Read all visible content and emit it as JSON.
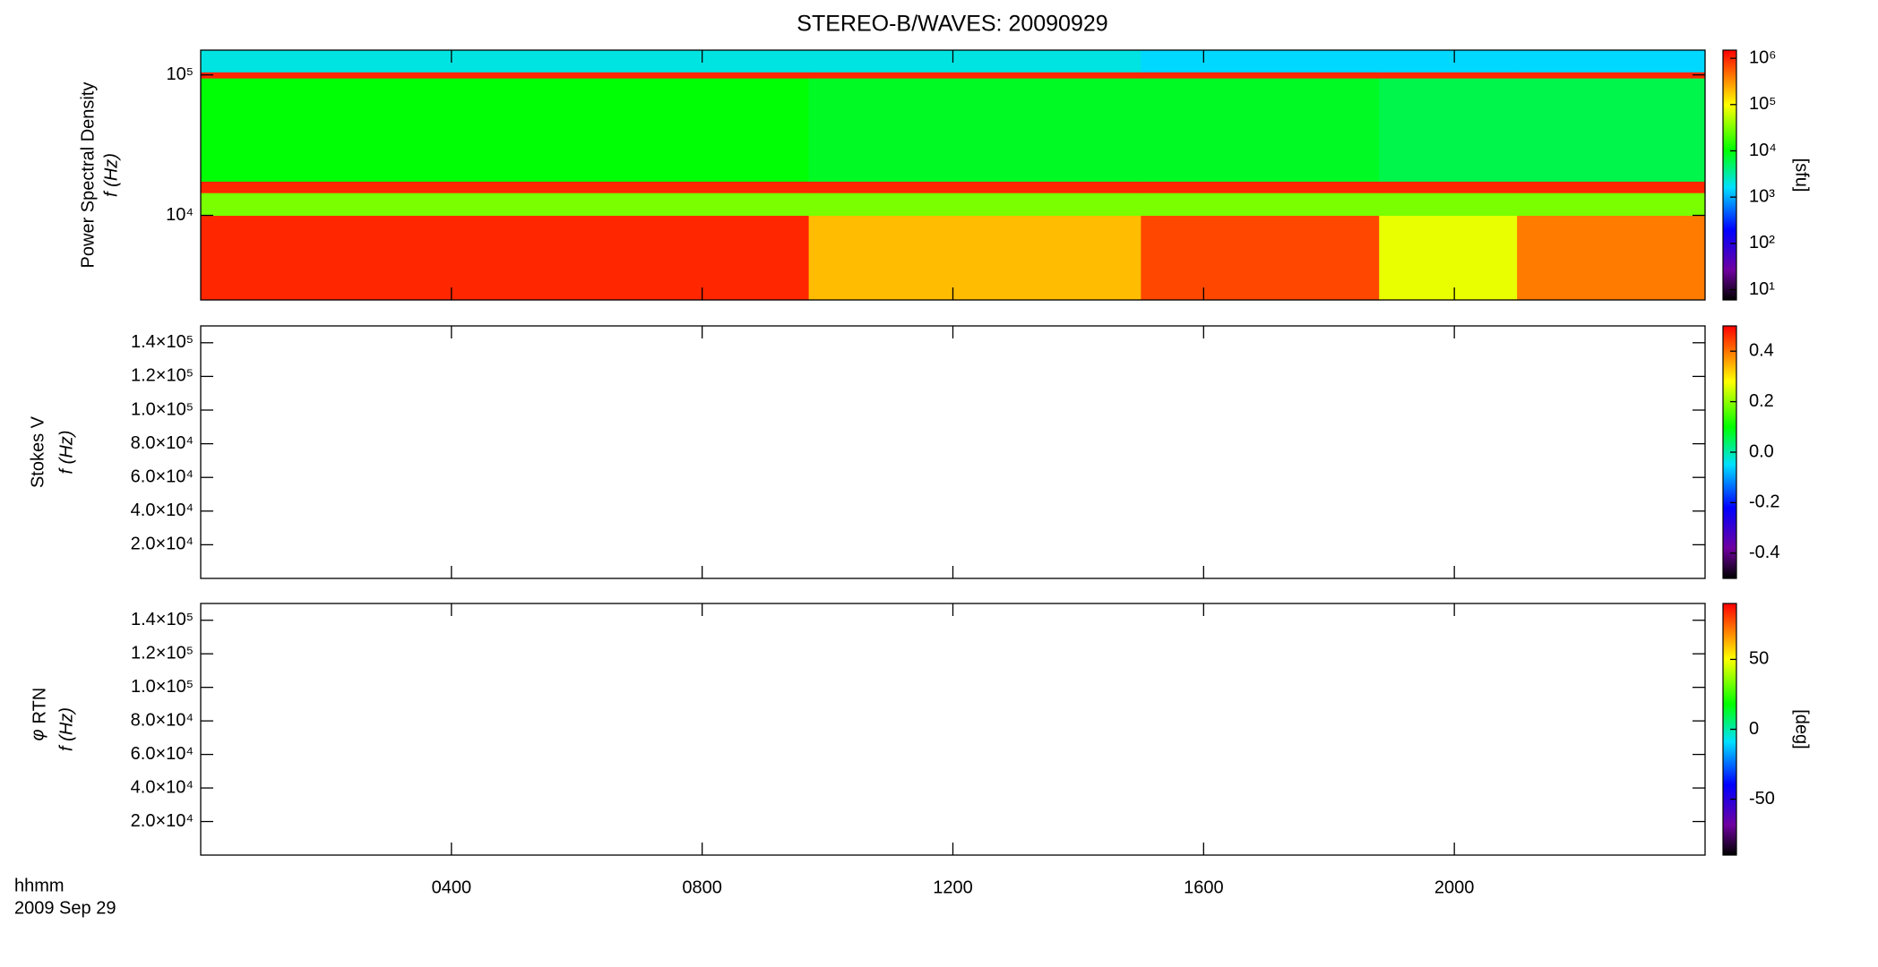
{
  "chart_data": [
    {
      "type": "heatmap",
      "title": "STEREO-B/WAVES: 20090929",
      "ylabel": [
        "Power Spectral Density",
        "f (Hz)"
      ],
      "x_edges": [
        0,
        9.7,
        15,
        18.8,
        21,
        24
      ],
      "y_edges": [
        2500,
        10000,
        14500,
        17500,
        95000,
        105000,
        150000
      ],
      "z": [
        [
          1000000,
          200000,
          700000,
          80000,
          400000
        ],
        [
          30000,
          30000,
          30000,
          30000,
          30000
        ],
        [
          1000000,
          1000000,
          1000000,
          1000000,
          1000000
        ],
        [
          10000,
          8000,
          8000,
          6000,
          6000
        ],
        [
          1000000,
          1000000,
          1000000,
          1000000,
          1000000
        ],
        [
          2000,
          2000,
          1500,
          1500,
          1500
        ]
      ],
      "xlim": [
        0,
        24
      ],
      "ylim": [
        2500,
        150000
      ],
      "yscale": "log",
      "yticks": [
        {
          "value": 10000,
          "label": "10⁴"
        },
        {
          "value": 100000,
          "label": "10⁵"
        }
      ],
      "zlim": [
        6,
        1500000
      ],
      "zscale": "log",
      "zticks": [
        {
          "value": 10,
          "label": "10¹"
        },
        {
          "value": 100,
          "label": "10²"
        },
        {
          "value": 1000,
          "label": "10³"
        },
        {
          "value": 10000,
          "label": "10⁴"
        },
        {
          "value": 100000,
          "label": "10⁵"
        },
        {
          "value": 1000000,
          "label": "10⁶"
        }
      ],
      "zlabel": "[sfu]"
    },
    {
      "type": "heatmap",
      "ylabel": [
        "Stokes V",
        "f (Hz)"
      ],
      "xlim": [
        0,
        24
      ],
      "ylim": [
        0,
        150000
      ],
      "yticks": [
        {
          "value": 20000,
          "label": "2.0×10⁴"
        },
        {
          "value": 40000,
          "label": "4.0×10⁴"
        },
        {
          "value": 60000,
          "label": "6.0×10⁴"
        },
        {
          "value": 80000,
          "label": "8.0×10⁴"
        },
        {
          "value": 100000,
          "label": "1.0×10⁵"
        },
        {
          "value": 120000,
          "label": "1.2×10⁵"
        },
        {
          "value": 140000,
          "label": "1.4×10⁵"
        }
      ],
      "zlim": [
        -0.5,
        0.5
      ],
      "zticks": [
        -0.4,
        -0.2,
        {
          "value": 0,
          "label": "0.0"
        },
        0.2,
        0.4
      ]
    },
    {
      "type": "heatmap",
      "ylabel": [
        "φ",
        "f (Hz)"
      ],
      "ylabel_sub": "RTN",
      "xlim": [
        0,
        24
      ],
      "ylim": [
        0,
        150000
      ],
      "yticks": [
        {
          "value": 20000,
          "label": "2.0×10⁴"
        },
        {
          "value": 40000,
          "label": "4.0×10⁴"
        },
        {
          "value": 60000,
          "label": "6.0×10⁴"
        },
        {
          "value": 80000,
          "label": "8.0×10⁴"
        },
        {
          "value": 100000,
          "label": "1.0×10⁵"
        },
        {
          "value": 120000,
          "label": "1.2×10⁵"
        },
        {
          "value": 140000,
          "label": "1.4×10⁵"
        }
      ],
      "zlim": [
        -90,
        90
      ],
      "zticks": [
        -50,
        0,
        50
      ],
      "zlabel": "[deg]",
      "xticks": [
        {
          "value": 4,
          "label": "0400"
        },
        {
          "value": 8,
          "label": "0800"
        },
        {
          "value": 12,
          "label": "1200"
        },
        {
          "value": 16,
          "label": "1600"
        },
        {
          "value": 20,
          "label": "2000"
        }
      ],
      "xlabel": [
        "hhmm",
        "2009 Sep 29"
      ]
    }
  ]
}
